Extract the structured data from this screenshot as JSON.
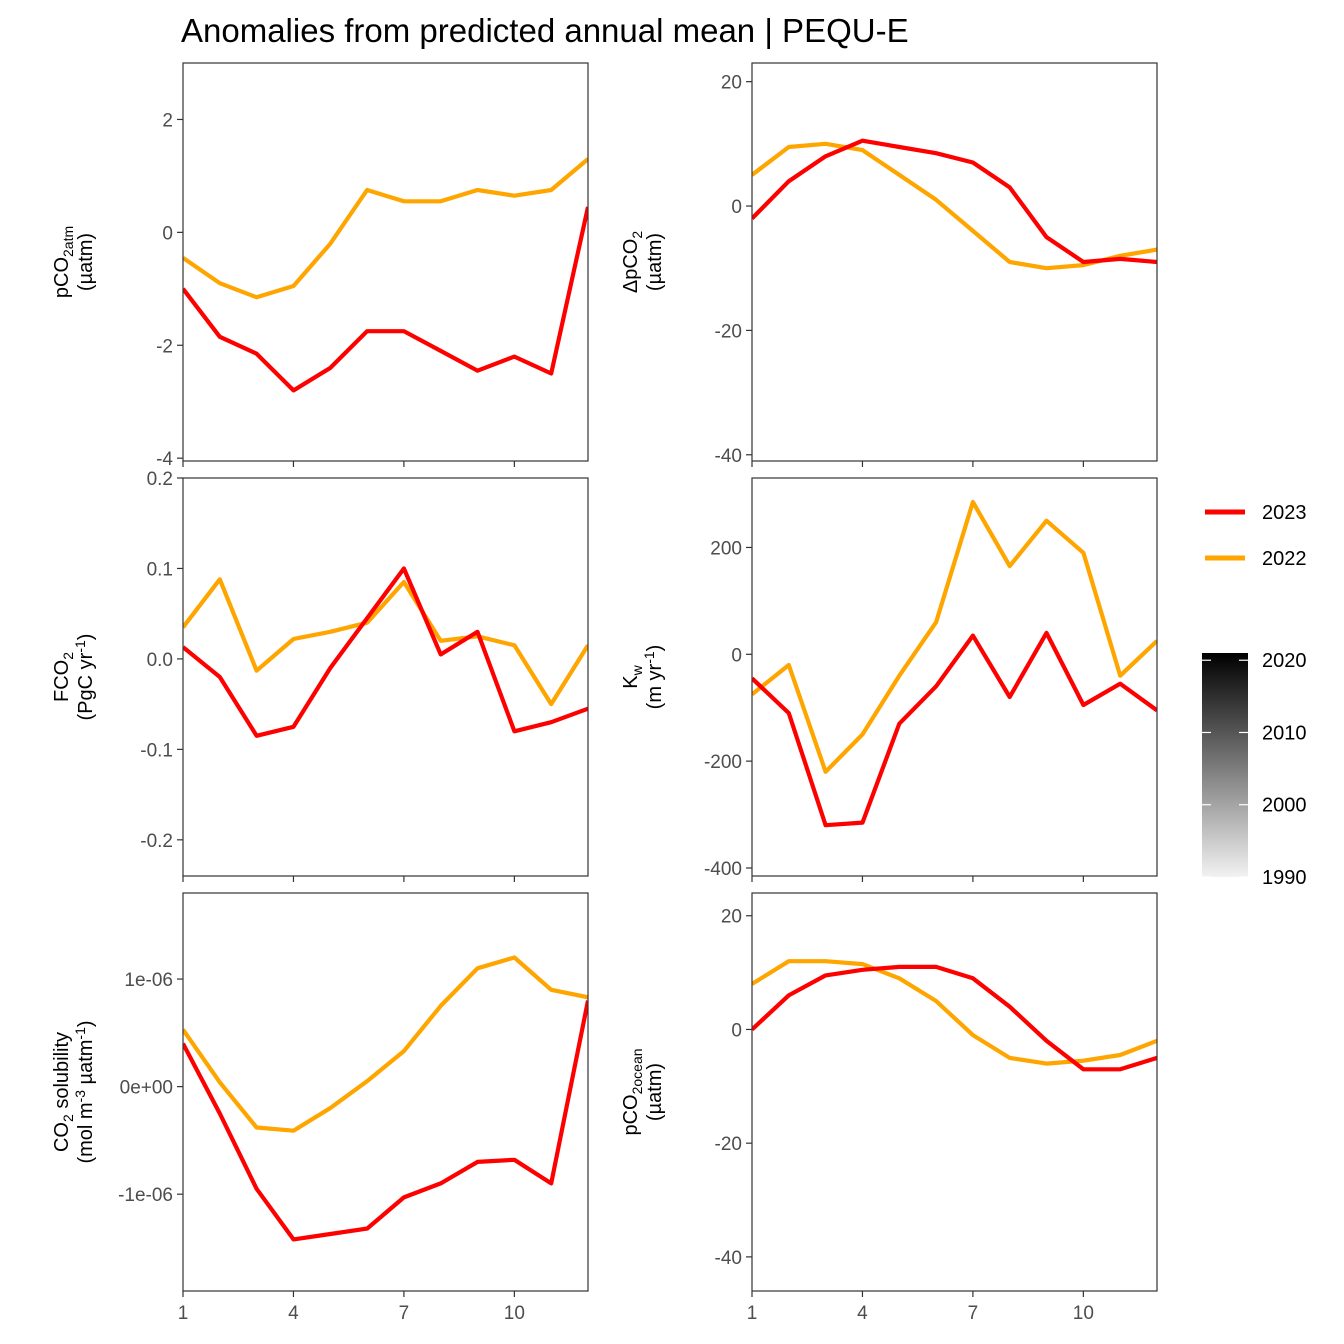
{
  "title": "Anomalies from predicted annual mean | PEQU-E",
  "colors": {
    "y2023": "#ff0000",
    "y2022": "#ffa500",
    "gradient_low": "#f2f2f2",
    "gradient_high": "#000000"
  },
  "legend": {
    "lines": [
      {
        "label": "2023",
        "color": "#ff0000"
      },
      {
        "label": "2022",
        "color": "#ffa500"
      }
    ],
    "colorbar_ticks": [
      "1990",
      "2000",
      "2010",
      "2020"
    ],
    "colorbar_range": [
      1990,
      2021
    ]
  },
  "chart_data": [
    {
      "type": "line",
      "panel": "pCO2_atm",
      "ylabel": [
        "pCO2,atm",
        "(µatm)"
      ],
      "x": [
        1,
        2,
        3,
        4,
        5,
        6,
        7,
        8,
        9,
        10,
        11,
        12
      ],
      "xticks": [
        "1",
        "4",
        "7",
        "10"
      ],
      "ylim": [
        -4.05,
        3.0
      ],
      "yticks": [
        {
          "v": 2,
          "l": "2"
        },
        {
          "v": 0,
          "l": "0"
        },
        {
          "v": -2,
          "l": "-2"
        },
        {
          "v": -4,
          "l": "-4"
        }
      ],
      "series": [
        {
          "year": 2023,
          "values": [
            -1.0,
            -1.85,
            -2.15,
            -2.8,
            -2.4,
            -1.75,
            -1.75,
            -2.1,
            -2.45,
            -2.2,
            -2.5,
            0.45
          ]
        },
        {
          "year": 2022,
          "values": [
            -0.45,
            -0.9,
            -1.15,
            -0.95,
            -0.2,
            0.75,
            0.55,
            0.55,
            0.75,
            0.65,
            0.75,
            1.3
          ]
        }
      ]
    },
    {
      "type": "line",
      "panel": "delta_pCO2",
      "ylabel": [
        "ΔpCO2",
        "(µatm)"
      ],
      "x": [
        1,
        2,
        3,
        4,
        5,
        6,
        7,
        8,
        9,
        10,
        11,
        12
      ],
      "xticks": [
        "1",
        "4",
        "7",
        "10"
      ],
      "ylim": [
        -41,
        23
      ],
      "yticks": [
        {
          "v": 20,
          "l": "20"
        },
        {
          "v": 0,
          "l": "0"
        },
        {
          "v": -20,
          "l": "-20"
        },
        {
          "v": -40,
          "l": "-40"
        }
      ],
      "series": [
        {
          "year": 2023,
          "values": [
            -2,
            4,
            8,
            10.5,
            9.5,
            8.5,
            7,
            3,
            -5,
            -9,
            -8.5,
            -9
          ]
        },
        {
          "year": 2022,
          "values": [
            5,
            9.5,
            10,
            9,
            5,
            1,
            -4,
            -9,
            -10,
            -9.5,
            -8,
            -7
          ]
        }
      ]
    },
    {
      "type": "line",
      "panel": "FCO2",
      "ylabel": [
        "FCO2",
        "(PgC yr-1)"
      ],
      "x": [
        1,
        2,
        3,
        4,
        5,
        6,
        7,
        8,
        9,
        10,
        11,
        12
      ],
      "xticks": [
        "1",
        "4",
        "7",
        "10"
      ],
      "ylim": [
        -0.24,
        0.2
      ],
      "yticks": [
        {
          "v": 0.2,
          "l": "0.2"
        },
        {
          "v": 0.1,
          "l": "0.1"
        },
        {
          "v": 0.0,
          "l": "0.0"
        },
        {
          "v": -0.1,
          "l": "-0.1"
        },
        {
          "v": -0.2,
          "l": "-0.2"
        }
      ],
      "series": [
        {
          "year": 2023,
          "values": [
            0.013,
            -0.02,
            -0.085,
            -0.075,
            -0.01,
            0.045,
            0.1,
            0.005,
            0.03,
            -0.08,
            -0.07,
            -0.055
          ]
        },
        {
          "year": 2022,
          "values": [
            0.035,
            0.088,
            -0.013,
            0.022,
            0.03,
            0.04,
            0.085,
            0.02,
            0.025,
            0.015,
            -0.05,
            0.015
          ]
        }
      ]
    },
    {
      "type": "line",
      "panel": "Kw",
      "ylabel": [
        "Kw",
        "(m yr-1)"
      ],
      "x": [
        1,
        2,
        3,
        4,
        5,
        6,
        7,
        8,
        9,
        10,
        11,
        12
      ],
      "xticks": [
        "1",
        "4",
        "7",
        "10"
      ],
      "ylim": [
        -415,
        330
      ],
      "yticks": [
        {
          "v": 200,
          "l": "200"
        },
        {
          "v": 0,
          "l": "0"
        },
        {
          "v": -200,
          "l": "-200"
        },
        {
          "v": -400,
          "l": "-400"
        }
      ],
      "series": [
        {
          "year": 2023,
          "values": [
            -45,
            -110,
            -320,
            -315,
            -130,
            -60,
            35,
            -80,
            40,
            -95,
            -55,
            -105
          ]
        },
        {
          "year": 2022,
          "values": [
            -75,
            -20,
            -220,
            -150,
            -40,
            60,
            285,
            165,
            250,
            190,
            -40,
            25
          ]
        }
      ]
    },
    {
      "type": "line",
      "panel": "CO2_solubility",
      "ylabel": [
        "CO2 solubility",
        "(mol m-3 µatm-1)"
      ],
      "x": [
        1,
        2,
        3,
        4,
        5,
        6,
        7,
        8,
        9,
        10,
        11,
        12
      ],
      "xticks": [
        "1",
        "4",
        "7",
        "10"
      ],
      "ylim": [
        -1.9e-06,
        1.8e-06
      ],
      "yticks": [
        {
          "v": 1e-06,
          "l": "1e-06"
        },
        {
          "v": 0,
          "l": "0e+00"
        },
        {
          "v": -1e-06,
          "l": "-1e-06"
        }
      ],
      "series": [
        {
          "year": 2023,
          "values": [
            4e-07,
            -2.5e-07,
            -9.5e-07,
            -1.42e-06,
            -1.37e-06,
            -1.32e-06,
            -1.03e-06,
            -9e-07,
            -7e-07,
            -6.8e-07,
            -9e-07,
            8e-07
          ]
        },
        {
          "year": 2022,
          "values": [
            5.3e-07,
            4e-08,
            -3.8e-07,
            -4.1e-07,
            -2e-07,
            5e-08,
            3.3e-07,
            7.5e-07,
            1.1e-06,
            1.2e-06,
            9e-07,
            8.3e-07
          ]
        }
      ]
    },
    {
      "type": "line",
      "panel": "pCO2_ocean",
      "ylabel": [
        "pCO2,ocean",
        "(µatm)"
      ],
      "x": [
        1,
        2,
        3,
        4,
        5,
        6,
        7,
        8,
        9,
        10,
        11,
        12
      ],
      "xticks": [
        "1",
        "4",
        "7",
        "10"
      ],
      "ylim": [
        -46,
        24
      ],
      "yticks": [
        {
          "v": 20,
          "l": "20"
        },
        {
          "v": 0,
          "l": "0"
        },
        {
          "v": -20,
          "l": "-20"
        },
        {
          "v": -40,
          "l": "-40"
        }
      ],
      "series": [
        {
          "year": 2023,
          "values": [
            0,
            6,
            9.5,
            10.5,
            11,
            11,
            9,
            4,
            -2,
            -7,
            -7,
            -5
          ]
        },
        {
          "year": 2022,
          "values": [
            8,
            12,
            12,
            11.5,
            9,
            5,
            -1,
            -5,
            -6,
            -5.5,
            -4.5,
            -2
          ]
        }
      ]
    }
  ]
}
